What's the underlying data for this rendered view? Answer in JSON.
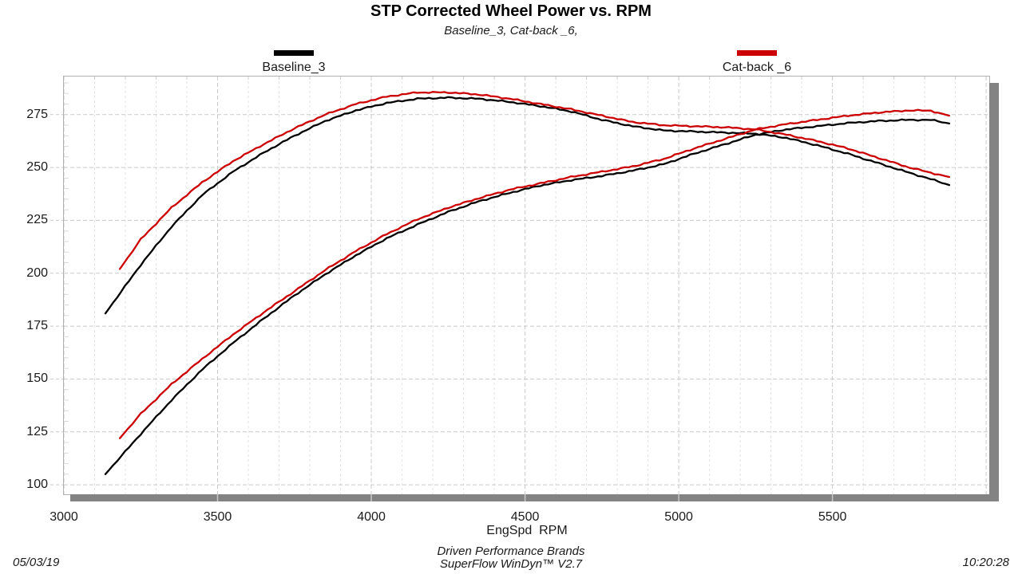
{
  "title": "STP Corrected Wheel Power vs. RPM",
  "subtitle": "Baseline_3, Cat-back _6,",
  "legend": [
    {
      "label": "Baseline_3",
      "color": "#000000"
    },
    {
      "label": "Cat-back _6",
      "color": "#cc0000"
    }
  ],
  "footer": {
    "date": "05/03/19",
    "center_line1": "Driven Performance Brands",
    "center_line2": "SuperFlow WinDyn™ V2.7",
    "time": "10:20:28"
  },
  "chart_data": {
    "type": "line",
    "title": "STP Corrected Wheel Power vs. RPM",
    "xlabel": "EngSpd  RPM",
    "ylabel": "",
    "xlim": [
      3000,
      6010
    ],
    "ylim": [
      95.5,
      293
    ],
    "x_ticks": [
      3000,
      3500,
      4000,
      4500,
      5000,
      5500
    ],
    "y_ticks": [
      100,
      125,
      150,
      175,
      200,
      225,
      250,
      275
    ],
    "grid": "major dashed gridlines every 500 RPM / 25 units, minor dashed verticals every 100 RPM, legend above plot",
    "colors": {
      "baseline": "#000000",
      "catback": "#cc0000",
      "grid_major": "#c9c9c9",
      "grid_minor": "#e3e3e3",
      "border": "#b0b0b0",
      "shadow_bar": "#838383"
    },
    "series": [
      {
        "name": "Baseline_3",
        "role": "torque-curve",
        "color": "#000000",
        "x": [
          3135,
          3250,
          3350,
          3450,
          3550,
          3650,
          3750,
          3850,
          3950,
          4050,
          4150,
          4250,
          4350,
          4450,
          4550,
          4650,
          4750,
          4850,
          4950,
          5050,
          5150,
          5250,
          5350,
          5450,
          5550,
          5650,
          5750,
          5820,
          5880
        ],
        "y": [
          181,
          204,
          222,
          237,
          248,
          257,
          265,
          272,
          277,
          280.5,
          282.5,
          283,
          282.5,
          281,
          279,
          276.5,
          272.5,
          269.5,
          267.5,
          267,
          266.5,
          266,
          264,
          260.5,
          256.5,
          252,
          247.5,
          244.5,
          241.7
        ]
      },
      {
        "name": "Cat-back _6",
        "role": "torque-curve",
        "color": "#cc0000",
        "x": [
          3182,
          3250,
          3350,
          3450,
          3550,
          3650,
          3750,
          3850,
          3950,
          4050,
          4150,
          4250,
          4350,
          4450,
          4550,
          4650,
          4750,
          4850,
          4950,
          5050,
          5150,
          5250,
          5350,
          5450,
          5550,
          5650,
          5750,
          5820,
          5880
        ],
        "y": [
          202,
          216,
          231,
          243,
          253,
          261,
          268.5,
          275,
          280,
          283.5,
          285.5,
          285.5,
          284.5,
          282.5,
          280,
          277.5,
          274.5,
          271.5,
          270,
          269.5,
          269,
          268,
          265.5,
          262.5,
          259,
          254.5,
          250,
          247.5,
          245.5
        ]
      },
      {
        "name": "Baseline_3",
        "role": "power-curve",
        "color": "#000000",
        "x": [
          3135,
          3250,
          3350,
          3450,
          3550,
          3650,
          3750,
          3850,
          3950,
          4050,
          4150,
          4250,
          4350,
          4450,
          4550,
          4650,
          4750,
          4850,
          4950,
          5050,
          5150,
          5250,
          5350,
          5450,
          5550,
          5650,
          5750,
          5820,
          5880
        ],
        "y": [
          105,
          124,
          140,
          154.5,
          167,
          178.5,
          189.5,
          199.5,
          208.5,
          216.5,
          223,
          229,
          234,
          238,
          241.5,
          244,
          246,
          248.5,
          251.5,
          256.5,
          261,
          265.5,
          268,
          269.5,
          271,
          272,
          272.5,
          272.5,
          270.8
        ]
      },
      {
        "name": "Cat-back _6",
        "role": "power-curve",
        "color": "#cc0000",
        "x": [
          3182,
          3250,
          3350,
          3450,
          3550,
          3650,
          3750,
          3850,
          3950,
          4050,
          4150,
          4250,
          4350,
          4450,
          4550,
          4650,
          4750,
          4850,
          4950,
          5050,
          5150,
          5250,
          5350,
          5450,
          5550,
          5650,
          5750,
          5820,
          5880
        ],
        "y": [
          122,
          133.5,
          147.5,
          159.5,
          171,
          181.5,
          191.5,
          201.5,
          210.5,
          218.5,
          225.5,
          231,
          235.5,
          239.5,
          242.5,
          245.5,
          248,
          250.5,
          254,
          259,
          263.5,
          268,
          270.5,
          272.5,
          274.5,
          276,
          277,
          276.8,
          274.5
        ]
      }
    ]
  }
}
